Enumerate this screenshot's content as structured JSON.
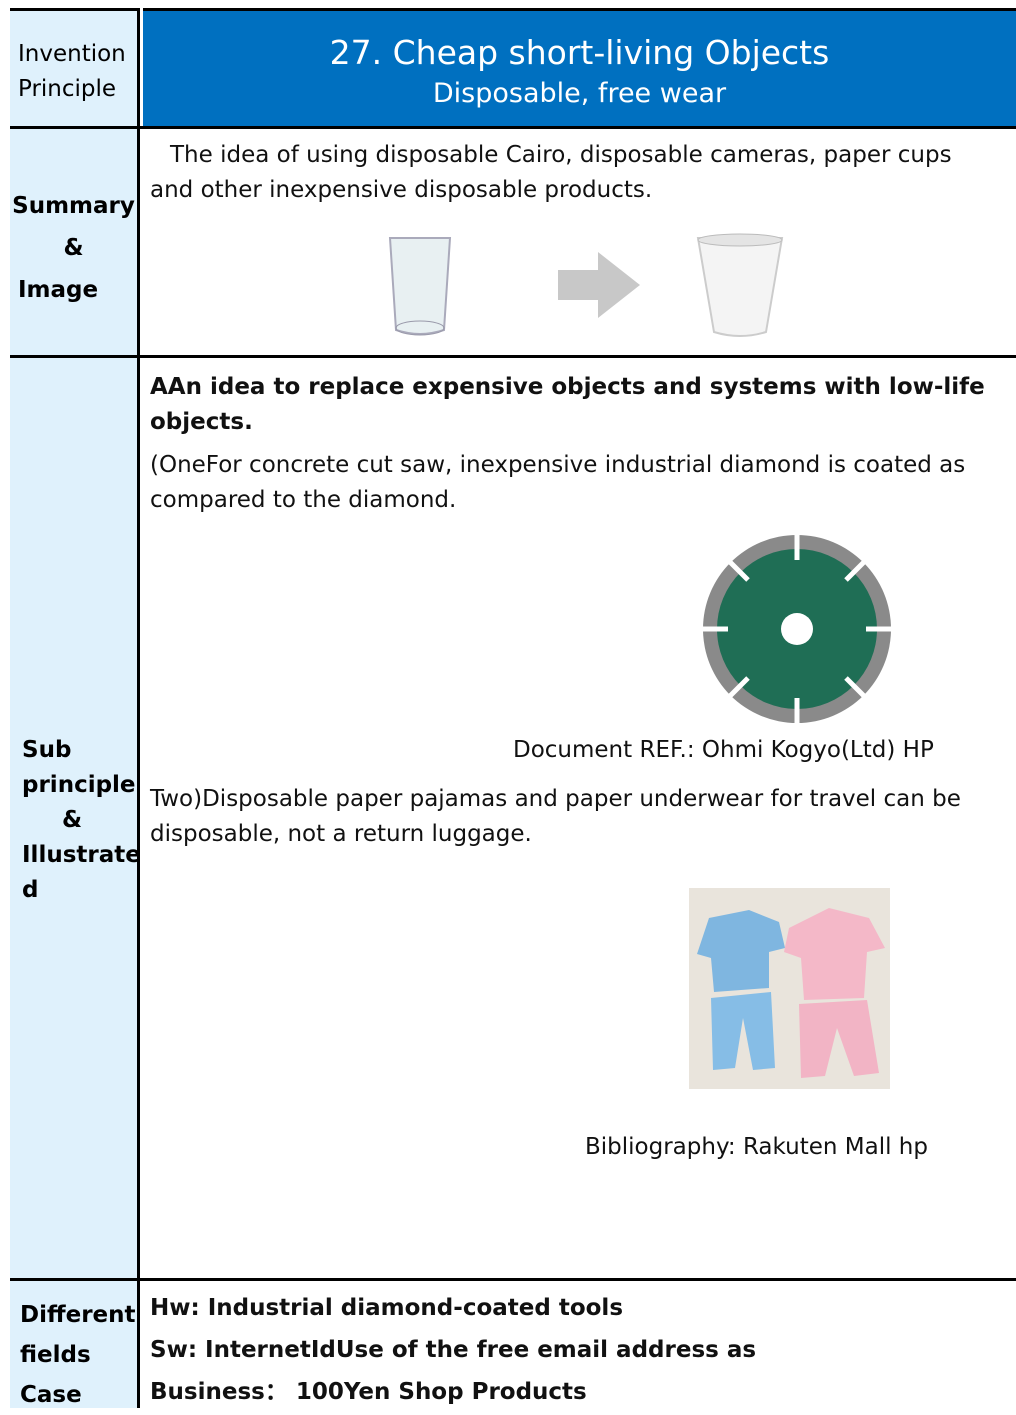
{
  "header": {
    "label": [
      "Invention",
      "Principle"
    ],
    "title": "27. Cheap short-living Objects",
    "subtitle": "Disposable, free wear"
  },
  "summary": {
    "label": [
      "Summary",
      "&",
      "Image"
    ],
    "text": "The idea of using disposable Cairo, disposable cameras, paper cups and other inexpensive disposable products."
  },
  "sub": {
    "label": [
      "Sub",
      "principle",
      "&",
      "Illustrate",
      "d"
    ],
    "heading": "AAn idea to replace expensive objects and systems with low-life objects.",
    "item1": "(OneFor concrete cut saw, inexpensive industrial diamond is coated as compared to the diamond.",
    "ref1": "Document REF.: Ohmi Kogyo(Ltd) HP",
    "item2": "Two)Disposable paper pajamas and paper underwear for travel can be disposable, not a return luggage.",
    "ref2": "Bibliography: Rakuten Mall hp"
  },
  "cases": {
    "label": [
      "Different",
      "fields",
      "Case"
    ],
    "items": [
      "Hw: Industrial diamond-coated tools",
      "Sw: InternetIdUse of the free email address as",
      "Business： 100Yen Shop Products"
    ]
  }
}
